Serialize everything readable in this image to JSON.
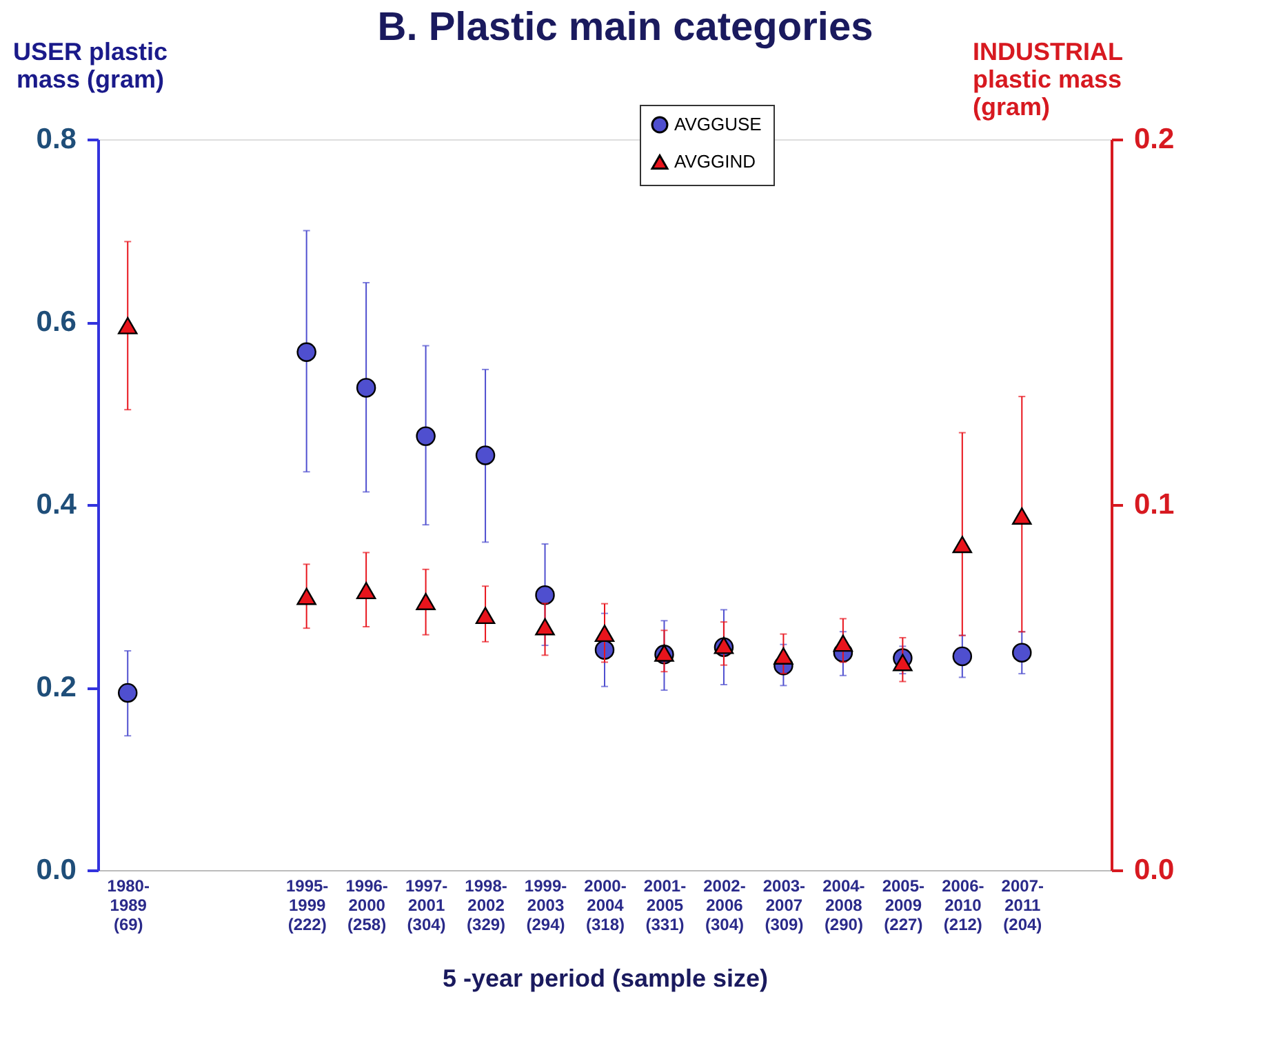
{
  "chart_data": {
    "type": "scatter",
    "title": "B.   Plastic main categories",
    "categories": [
      "1980-1989 (69)",
      null,
      null,
      "1995-1999 (222)",
      "1996-2000 (258)",
      "1997-2001 (304)",
      "1998-2002 (329)",
      "1999-2003 (294)",
      "2000-2004 (318)",
      "2001-2005 (331)",
      "2002-2006 (304)",
      "2003-2007 (309)",
      "2004-2008 (290)",
      "2005-2009 (227)",
      "2006-2010 (212)",
      "2007-2011 (204)",
      null
    ],
    "xlabel": "5 -year period (sample size)",
    "ylabel": "USER plastic mass (gram)",
    "y2label": "INDUSTRIAL plastic mass (gram)",
    "ylim": [
      0,
      0.8
    ],
    "yticks": [
      {
        "value": 0,
        "label": "0.0"
      },
      0.2,
      0.4,
      0.6,
      0.8
    ],
    "y2lim": [
      0,
      0.2
    ],
    "y2ticks": [
      {
        "value": 0,
        "label": "0.0"
      },
      0.1,
      0.2
    ],
    "series": [
      {
        "name": "AVGGUSE",
        "color": "#4f4fcf",
        "marker": "circle",
        "axis": "y",
        "values": [
          0.194,
          null,
          null,
          0.567,
          0.528,
          0.475,
          0.454,
          0.301,
          0.241,
          0.236,
          0.244,
          0.224,
          0.238,
          0.232,
          0.234,
          0.238,
          null
        ],
        "errors": [
          [
            0.147,
            0.24
          ],
          null,
          null,
          [
            0.436,
            0.7
          ],
          [
            0.414,
            0.643
          ],
          [
            0.378,
            0.574
          ],
          [
            0.359,
            0.548
          ],
          [
            0.246,
            0.357
          ],
          [
            0.201,
            0.281
          ],
          [
            0.197,
            0.273
          ],
          [
            0.203,
            0.285
          ],
          [
            0.202,
            0.247
          ],
          [
            0.213,
            0.261
          ],
          [
            0.215,
            0.245
          ],
          [
            0.211,
            0.257
          ],
          [
            0.215,
            0.261
          ],
          null
        ]
      },
      {
        "name": "AVGGIND",
        "color": "#e8141c",
        "marker": "triangle",
        "axis": "y2",
        "values": [
          0.149,
          null,
          null,
          0.0749,
          0.0765,
          0.0735,
          0.0697,
          0.0666,
          0.0648,
          0.0594,
          0.0615,
          0.0586,
          0.0621,
          0.0568,
          0.0891,
          0.0969,
          null
        ],
        "errors": [
          [
            0.126,
            0.172
          ],
          null,
          null,
          [
            0.0662,
            0.0837
          ],
          [
            0.0666,
            0.0869
          ],
          [
            0.0644,
            0.0823
          ],
          [
            0.0625,
            0.0777
          ],
          [
            0.0588,
            0.073
          ],
          [
            0.0569,
            0.0729
          ],
          [
            0.0543,
            0.0656
          ],
          [
            0.0561,
            0.0679
          ],
          [
            0.0538,
            0.0646
          ],
          [
            0.0569,
            0.0688
          ],
          [
            0.0516,
            0.0636
          ],
          [
            0.0642,
            0.1197
          ],
          [
            0.0652,
            0.1296
          ],
          null
        ]
      }
    ],
    "legend": "top",
    "grid": false
  }
}
